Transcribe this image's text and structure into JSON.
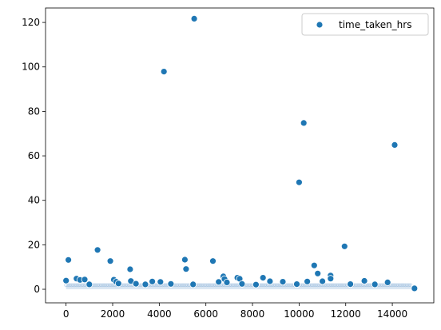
{
  "chart_data": {
    "type": "scatter",
    "title": "",
    "xlabel": "",
    "ylabel": "",
    "xlim": [
      -880,
      15780
    ],
    "ylim": [
      -6.1,
      126.5
    ],
    "xticks": [
      0,
      2000,
      4000,
      6000,
      8000,
      10000,
      12000,
      14000
    ],
    "xtick_labels": [
      "0",
      "2000",
      "4000",
      "6000",
      "8000",
      "10000",
      "12000",
      "14000"
    ],
    "yticks": [
      0,
      20,
      40,
      60,
      80,
      100,
      120
    ],
    "ytick_labels": [
      "0",
      "20",
      "40",
      "60",
      "80",
      "100",
      "120"
    ],
    "grid": false,
    "legend_position": "top-right",
    "marker_color": "#1f77b4",
    "series": [
      {
        "name": "time_taken_hrs",
        "points": [
          {
            "x": 0,
            "y": 3.9
          },
          {
            "x": 100,
            "y": 13.2
          },
          {
            "x": 450,
            "y": 4.8
          },
          {
            "x": 600,
            "y": 4.2
          },
          {
            "x": 800,
            "y": 4.4
          },
          {
            "x": 1000,
            "y": 2.2
          },
          {
            "x": 1350,
            "y": 17.7
          },
          {
            "x": 1900,
            "y": 12.7
          },
          {
            "x": 2050,
            "y": 4.3
          },
          {
            "x": 2150,
            "y": 3.4
          },
          {
            "x": 2250,
            "y": 2.6
          },
          {
            "x": 2750,
            "y": 9.0
          },
          {
            "x": 2780,
            "y": 3.7
          },
          {
            "x": 3000,
            "y": 2.5
          },
          {
            "x": 3400,
            "y": 2.2
          },
          {
            "x": 3700,
            "y": 3.5
          },
          {
            "x": 4050,
            "y": 3.3
          },
          {
            "x": 4200,
            "y": 97.9
          },
          {
            "x": 4500,
            "y": 2.4
          },
          {
            "x": 5100,
            "y": 13.3
          },
          {
            "x": 5150,
            "y": 9.1
          },
          {
            "x": 5500,
            "y": 121.7
          },
          {
            "x": 5450,
            "y": 2.2
          },
          {
            "x": 6300,
            "y": 12.7
          },
          {
            "x": 6550,
            "y": 3.3
          },
          {
            "x": 6750,
            "y": 5.8
          },
          {
            "x": 6800,
            "y": 4.6
          },
          {
            "x": 6900,
            "y": 3.1
          },
          {
            "x": 7350,
            "y": 5.2
          },
          {
            "x": 7450,
            "y": 4.7
          },
          {
            "x": 7550,
            "y": 2.4
          },
          {
            "x": 8150,
            "y": 2.1
          },
          {
            "x": 8450,
            "y": 5.2
          },
          {
            "x": 8750,
            "y": 3.6
          },
          {
            "x": 9300,
            "y": 3.4
          },
          {
            "x": 9900,
            "y": 2.3
          },
          {
            "x": 10000,
            "y": 48.1
          },
          {
            "x": 10200,
            "y": 74.8
          },
          {
            "x": 10350,
            "y": 3.5
          },
          {
            "x": 10650,
            "y": 10.7
          },
          {
            "x": 10800,
            "y": 7.1
          },
          {
            "x": 11000,
            "y": 3.6
          },
          {
            "x": 11350,
            "y": 6.2
          },
          {
            "x": 11350,
            "y": 4.8
          },
          {
            "x": 11950,
            "y": 19.3
          },
          {
            "x": 12200,
            "y": 2.3
          },
          {
            "x": 12800,
            "y": 3.8
          },
          {
            "x": 13250,
            "y": 2.2
          },
          {
            "x": 13800,
            "y": 3.1
          },
          {
            "x": 14100,
            "y": 64.9
          },
          {
            "x": 14950,
            "y": 0.4
          }
        ],
        "dense_band": {
          "x_range": [
            0,
            14800
          ],
          "y_range": [
            0,
            2.2
          ]
        }
      }
    ]
  }
}
